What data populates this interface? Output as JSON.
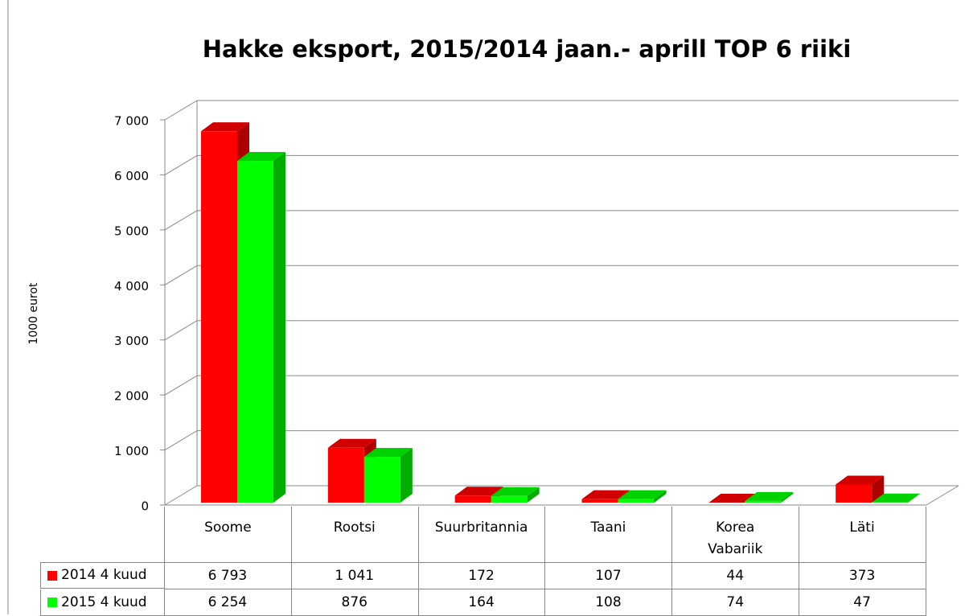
{
  "chart_data": {
    "type": "bar3d",
    "title": "Hakke eksport, 2015/2014 jaan.- aprill TOP 6 riiki",
    "y_label": "1000 eurot",
    "categories": [
      "Soome",
      "Rootsi",
      "Suurbritannia",
      "Taani",
      "Korea\nVabariik",
      "Läti"
    ],
    "series": [
      {
        "name": "2014 4 kuud",
        "color": "#ff0000",
        "values": [
          6793,
          1041,
          172,
          107,
          44,
          373
        ],
        "value_labels": [
          "6 793",
          "1 041",
          "172",
          "107",
          "44",
          "373"
        ]
      },
      {
        "name": "2015 4 kuud",
        "color": "#00ff00",
        "values": [
          6254,
          876,
          164,
          108,
          74,
          47
        ],
        "value_labels": [
          "6 254",
          "876",
          "164",
          "108",
          "74",
          "47"
        ]
      }
    ],
    "ylim": [
      0,
      7000
    ],
    "yticks": [
      0,
      {
        "value": 1000,
        "label": "1 000"
      },
      {
        "value": 2000,
        "label": "2 000"
      },
      {
        "value": 3000,
        "label": "3 000"
      },
      {
        "value": 4000,
        "label": "4 000"
      },
      {
        "value": 5000,
        "label": "5 000"
      },
      {
        "value": 6000,
        "label": "6 000"
      },
      {
        "value": 7000,
        "label": "7 000"
      }
    ],
    "grid": true
  }
}
